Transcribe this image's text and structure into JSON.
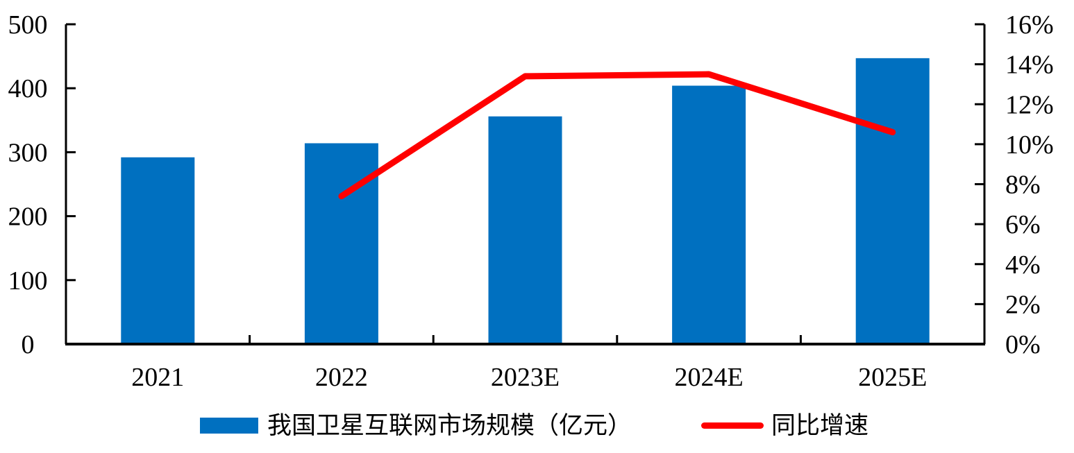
{
  "chart_data": {
    "type": "combo",
    "categories": [
      "2021",
      "2022",
      "2023E",
      "2024E",
      "2025E"
    ],
    "series": [
      {
        "name": "我国卫星互联网市场规模（亿元）",
        "type": "bar",
        "axis": "left",
        "color": "#0070C0",
        "values": [
          292,
          314,
          356,
          404,
          447
        ]
      },
      {
        "name": "同比增速",
        "type": "line",
        "axis": "right",
        "color": "#FF0000",
        "values": [
          null,
          7.4,
          13.4,
          13.5,
          10.6
        ]
      }
    ],
    "left_axis": {
      "min": 0,
      "max": 500,
      "tick_step": 100,
      "tick_labels": [
        "0",
        "100",
        "200",
        "300",
        "400",
        "500"
      ]
    },
    "right_axis": {
      "min": 0,
      "max": 16,
      "tick_step": 2,
      "unit": "%",
      "tick_labels": [
        "0%",
        "2%",
        "4%",
        "6%",
        "8%",
        "10%",
        "12%",
        "14%",
        "16%"
      ]
    },
    "legend_position": "bottom",
    "grid": false,
    "axis_color": "#000000",
    "background": "#FFFFFF"
  }
}
